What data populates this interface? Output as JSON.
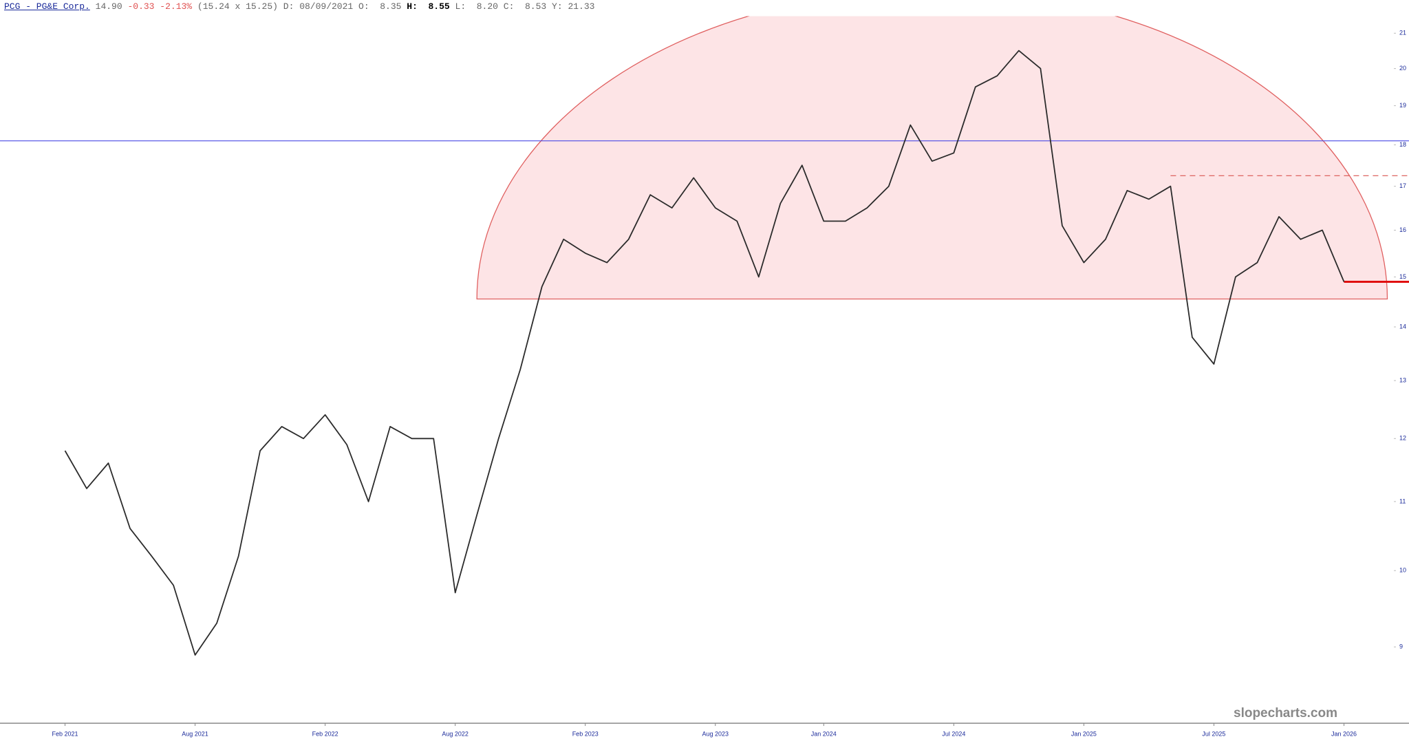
{
  "header": {
    "symbol": "PCG - PG&E Corp.",
    "last": "14.90",
    "change": "-0.33",
    "change_pct": "-2.13%",
    "bid_ask": "(15.24 x 15.25)",
    "date_label": "D:",
    "date": "08/09/2021",
    "open_label": "O:",
    "open": "8.35",
    "high_label": "H:",
    "high": "8.55",
    "low_label": "L:",
    "low": "8.20",
    "close_label": "C:",
    "close": "8.53",
    "year_label": "Y:",
    "year_high": "21.33"
  },
  "chart_data": {
    "type": "line",
    "log_scale": true,
    "color": "#2b2b2b",
    "x": [
      "2021-02",
      "2021-03",
      "2021-04",
      "2021-05",
      "2021-06",
      "2021-07",
      "2021-08",
      "2021-09",
      "2021-10",
      "2021-11",
      "2021-12",
      "2022-01",
      "2022-02",
      "2022-03",
      "2022-04",
      "2022-05",
      "2022-06",
      "2022-07",
      "2022-08",
      "2022-09",
      "2022-10",
      "2022-11",
      "2022-12",
      "2023-01",
      "2023-02",
      "2023-03",
      "2023-04",
      "2023-05",
      "2023-06",
      "2023-07",
      "2023-08",
      "2023-09",
      "2023-10",
      "2023-11",
      "2023-12",
      "2024-01",
      "2024-02",
      "2024-03",
      "2024-04",
      "2024-05",
      "2024-06",
      "2024-07",
      "2024-08",
      "2024-09",
      "2024-10",
      "2024-11",
      "2024-12",
      "2025-01",
      "2025-02",
      "2025-03",
      "2025-04",
      "2025-05",
      "2025-06",
      "2025-07",
      "2025-08",
      "2025-09",
      "2025-10",
      "2025-11",
      "2025-12",
      "2026-01"
    ],
    "values": [
      11.8,
      11.2,
      11.6,
      10.6,
      10.2,
      9.8,
      8.9,
      9.3,
      10.2,
      11.8,
      12.2,
      12.0,
      12.4,
      11.9,
      11.0,
      12.2,
      12.0,
      12.0,
      9.7,
      10.8,
      12.0,
      13.2,
      14.8,
      15.8,
      15.5,
      15.3,
      15.8,
      16.8,
      16.5,
      17.2,
      16.5,
      16.2,
      15.0,
      16.6,
      17.5,
      16.2,
      16.2,
      16.5,
      17.0,
      18.5,
      17.6,
      17.8,
      19.5,
      19.8,
      20.5,
      20.0,
      16.1,
      15.3,
      15.8,
      16.9,
      16.7,
      17.0,
      13.8,
      13.3,
      15.0,
      15.3,
      16.3,
      15.8,
      16.0,
      14.9
    ],
    "xlim": [
      "2020-11",
      "2026-04"
    ],
    "xticks": [
      {
        "value": "2021-02",
        "label": "Feb 2021"
      },
      {
        "value": "2021-08",
        "label": "Aug 2021"
      },
      {
        "value": "2022-02",
        "label": "Feb 2022"
      },
      {
        "value": "2022-08",
        "label": "Aug 2022"
      },
      {
        "value": "2023-02",
        "label": "Feb 2023"
      },
      {
        "value": "2023-08",
        "label": "Aug 2023"
      },
      {
        "value": "2024-01",
        "label": "Jan 2024"
      },
      {
        "value": "2024-07",
        "label": "Jul 2024"
      },
      {
        "value": "2025-01",
        "label": "Jan 2025"
      },
      {
        "value": "2025-07",
        "label": "Jul 2025"
      },
      {
        "value": "2026-01",
        "label": "Jan 2026"
      }
    ],
    "ylim": [
      8.1,
      21.5
    ],
    "yticks": [
      9,
      10,
      11,
      12,
      13,
      14,
      15,
      16,
      17,
      18,
      19,
      20,
      21
    ],
    "hlines": [
      {
        "y": 18.1,
        "color": "#4a4ae6"
      },
      {
        "y": 17.25,
        "color": "#d9534f",
        "x_from": "2025-05",
        "dashed": true
      },
      {
        "y": 14.9,
        "color": "#e01010",
        "x_from": "2026-01",
        "thick": true
      }
    ],
    "arc": {
      "x_from": "2022-09",
      "x_to": "2026-03",
      "base": 14.55,
      "top": 22.3,
      "color": "#e06060",
      "fill": "#fde4e6"
    },
    "watermark": "slopecharts.com"
  }
}
